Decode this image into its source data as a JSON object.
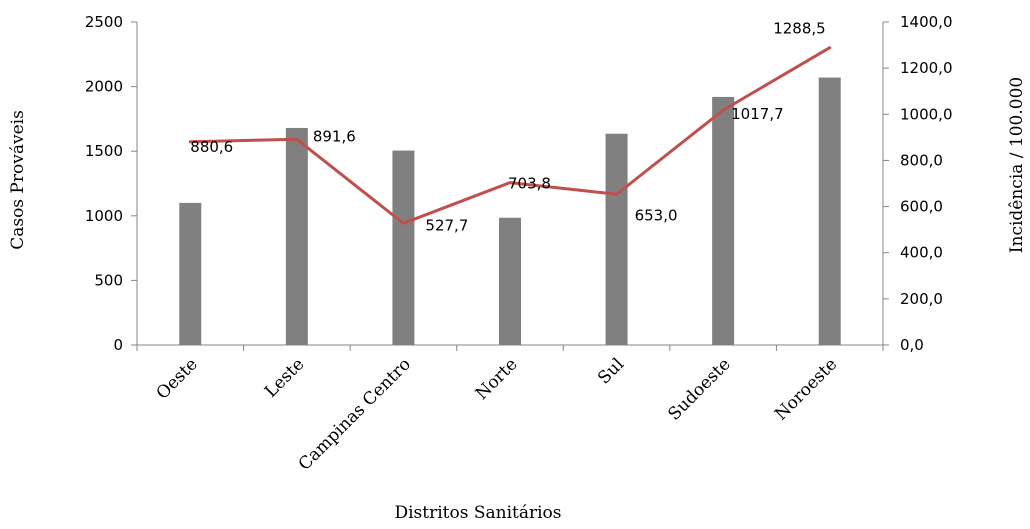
{
  "chart_data": {
    "type": "bar+line",
    "categories": [
      "Oeste",
      "Leste",
      "Campinas Centro",
      "Norte",
      "Sul",
      "Sudoeste",
      "Noroeste"
    ],
    "series": [
      {
        "name": "Casos Prováveis",
        "type": "bar",
        "axis": "left",
        "color": "#808080",
        "values": [
          1100,
          1680,
          1505,
          985,
          1635,
          1920,
          2070
        ]
      },
      {
        "name": "Incidência / 100.000",
        "type": "line",
        "axis": "right",
        "color": "#c0504d",
        "values": [
          880.6,
          891.6,
          527.7,
          703.8,
          653.0,
          1017.7,
          1288.5
        ],
        "data_labels": [
          "880,6",
          "891,6",
          "527,7",
          "703,8",
          "653,0",
          "1017,7",
          "1288,5"
        ]
      }
    ],
    "xlabel": "Distritos Sanitários",
    "ylabel": "Casos Prováveis",
    "y2label": "Incidência / 100.000",
    "ylim": [
      0,
      2500
    ],
    "y2lim": [
      0,
      1400
    ],
    "yticks": [
      "0",
      "500",
      "1000",
      "1500",
      "2000",
      "2500"
    ],
    "y2ticks": [
      "0,0",
      "200,0",
      "400,0",
      "600,0",
      "800,0",
      "1000,0",
      "1200,0",
      "1400,0"
    ],
    "grid": false,
    "legend": "none"
  }
}
